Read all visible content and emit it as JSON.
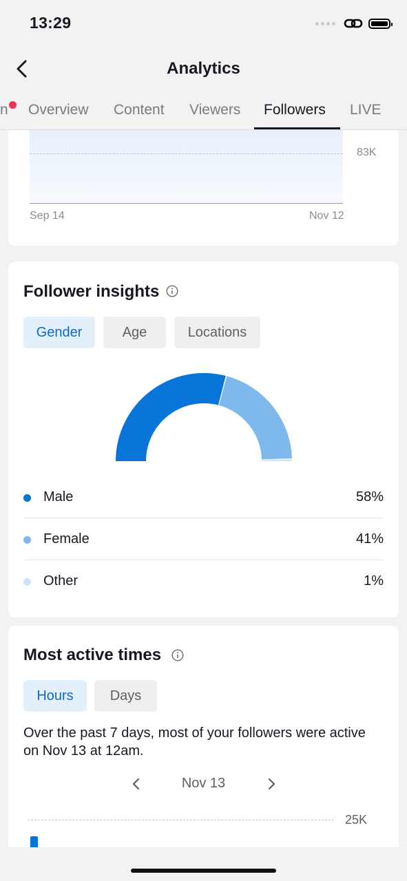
{
  "status_bar": {
    "time": "13:29"
  },
  "header": {
    "title": "Analytics"
  },
  "tabs": [
    {
      "label": "n"
    },
    {
      "label": "Overview"
    },
    {
      "label": "Content"
    },
    {
      "label": "Viewers"
    },
    {
      "label": "Followers"
    },
    {
      "label": "LIVE"
    }
  ],
  "active_tab": "Followers",
  "follower_chart": {
    "y_label": "83K",
    "x_start": "Sep 14",
    "x_end": "Nov 12"
  },
  "insights": {
    "title": "Follower insights",
    "filters": [
      {
        "label": "Gender"
      },
      {
        "label": "Age"
      },
      {
        "label": "Locations"
      }
    ],
    "active_filter": "Gender",
    "gender": [
      {
        "name": "Male",
        "percent": "58%",
        "value": 58,
        "color": "#0a75d8"
      },
      {
        "name": "Female",
        "percent": "41%",
        "value": 41,
        "color": "#7fb9ec"
      },
      {
        "name": "Other",
        "percent": "1%",
        "value": 1,
        "color": "#cfe3f7"
      }
    ]
  },
  "active_times": {
    "title": "Most active times",
    "filters": [
      {
        "label": "Hours"
      },
      {
        "label": "Days"
      }
    ],
    "active_filter": "Hours",
    "description": "Over the past 7 days, most of your followers were active on Nov 13 at 12am.",
    "date": "Nov 13",
    "y_label": "25K"
  },
  "colors": {
    "accent": "#0a75d8",
    "notification": "#fe2c55"
  }
}
